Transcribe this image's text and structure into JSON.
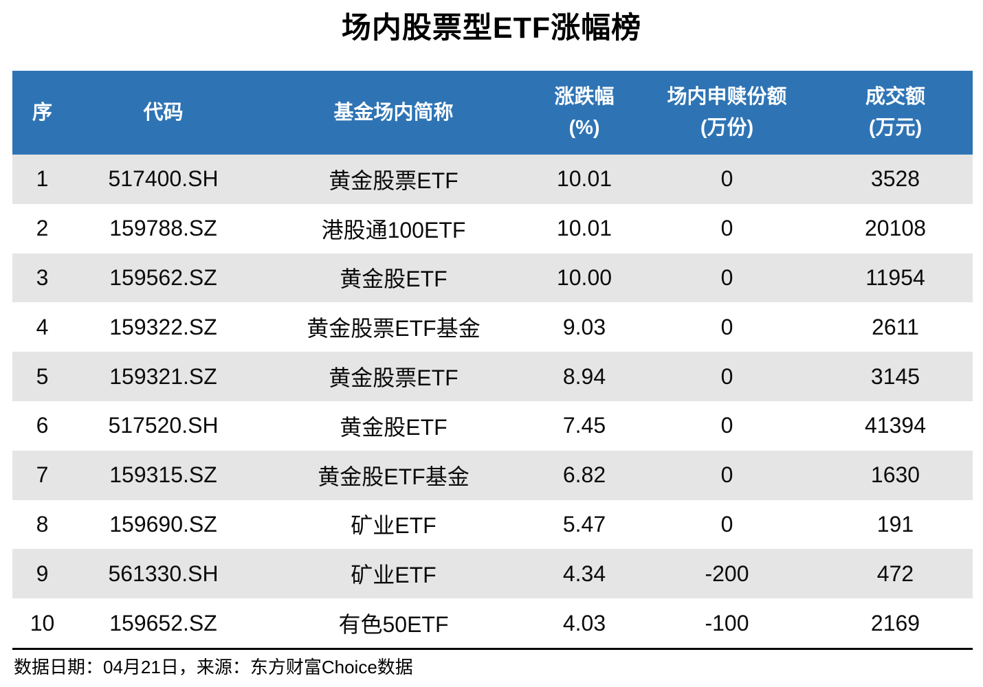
{
  "title": "场内股票型ETF涨幅榜",
  "colors": {
    "header_bg": "#2E74B5",
    "header_text": "#FFFFFF",
    "row_alt_bg": "#E5E5E5",
    "row_bg": "#FFFFFF",
    "body_text": "#0B0B0B"
  },
  "table": {
    "headers": [
      {
        "line1": "序",
        "line2": ""
      },
      {
        "line1": "代码",
        "line2": ""
      },
      {
        "line1": "基金场内简称",
        "line2": ""
      },
      {
        "line1": "涨跌幅",
        "line2": "(%)"
      },
      {
        "line1": "场内申赎份额",
        "line2": "(万份)"
      },
      {
        "line1": "成交额",
        "line2": "(万元)"
      }
    ],
    "rows": [
      {
        "rank": "1",
        "code": "517400.SH",
        "name": "黄金股票ETF",
        "change": "10.01",
        "shares": "0",
        "turnover": "3528"
      },
      {
        "rank": "2",
        "code": "159788.SZ",
        "name": "港股通100ETF",
        "change": "10.01",
        "shares": "0",
        "turnover": "20108"
      },
      {
        "rank": "3",
        "code": "159562.SZ",
        "name": "黄金股ETF",
        "change": "10.00",
        "shares": "0",
        "turnover": "11954"
      },
      {
        "rank": "4",
        "code": "159322.SZ",
        "name": "黄金股票ETF基金",
        "change": "9.03",
        "shares": "0",
        "turnover": "2611"
      },
      {
        "rank": "5",
        "code": "159321.SZ",
        "name": "黄金股票ETF",
        "change": "8.94",
        "shares": "0",
        "turnover": "3145"
      },
      {
        "rank": "6",
        "code": "517520.SH",
        "name": "黄金股ETF",
        "change": "7.45",
        "shares": "0",
        "turnover": "41394"
      },
      {
        "rank": "7",
        "code": "159315.SZ",
        "name": "黄金股ETF基金",
        "change": "6.82",
        "shares": "0",
        "turnover": "1630"
      },
      {
        "rank": "8",
        "code": "159690.SZ",
        "name": "矿业ETF",
        "change": "5.47",
        "shares": "0",
        "turnover": "191"
      },
      {
        "rank": "9",
        "code": "561330.SH",
        "name": "矿业ETF",
        "change": "4.34",
        "shares": "-200",
        "turnover": "472"
      },
      {
        "rank": "10",
        "code": "159652.SZ",
        "name": "有色50ETF",
        "change": "4.03",
        "shares": "-100",
        "turnover": "2169"
      }
    ]
  },
  "footer": {
    "text": "数据日期：04月21日，来源：东方财富Choice数据"
  },
  "chart_data": {
    "type": "table",
    "title": "场内股票型ETF涨幅榜",
    "columns": [
      "序",
      "代码",
      "基金场内简称",
      "涨跌幅(%)",
      "场内申赎份额(万份)",
      "成交额(万元)"
    ],
    "rows": [
      [
        1,
        "517400.SH",
        "黄金股票ETF",
        10.01,
        0,
        3528
      ],
      [
        2,
        "159788.SZ",
        "港股通100ETF",
        10.01,
        0,
        20108
      ],
      [
        3,
        "159562.SZ",
        "黄金股ETF",
        10.0,
        0,
        11954
      ],
      [
        4,
        "159322.SZ",
        "黄金股票ETF基金",
        9.03,
        0,
        2611
      ],
      [
        5,
        "159321.SZ",
        "黄金股票ETF",
        8.94,
        0,
        3145
      ],
      [
        6,
        "517520.SH",
        "黄金股ETF",
        7.45,
        0,
        41394
      ],
      [
        7,
        "159315.SZ",
        "黄金股ETF基金",
        6.82,
        0,
        1630
      ],
      [
        8,
        "159690.SZ",
        "矿业ETF",
        5.47,
        0,
        191
      ],
      [
        9,
        "561330.SH",
        "矿业ETF",
        4.34,
        -200,
        472
      ],
      [
        10,
        "159652.SZ",
        "有色50ETF",
        4.03,
        -100,
        2169
      ]
    ],
    "source_note": "数据日期：04月21日，来源：东方财富Choice数据"
  }
}
